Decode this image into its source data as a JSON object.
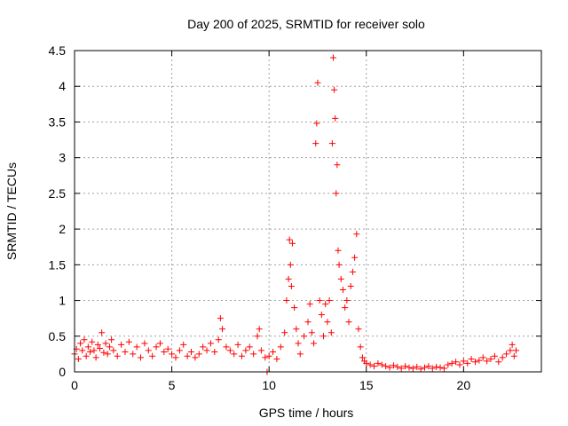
{
  "chart_data": {
    "type": "scatter",
    "title": "Day 200 of 2025, SRMTID for receiver solo",
    "xlabel": "GPS time / hours",
    "ylabel": "SRMTID / TECUs",
    "xlim": [
      0,
      24
    ],
    "ylim": [
      0,
      4.5
    ],
    "x_ticks": [
      0,
      5,
      10,
      15,
      20
    ],
    "x_tick_labels": [
      "0",
      "5",
      "10",
      "15",
      "20"
    ],
    "y_ticks": [
      0,
      0.5,
      1,
      1.5,
      2,
      2.5,
      3,
      3.5,
      4,
      4.5
    ],
    "y_tick_labels": [
      "0",
      "0.5",
      "1",
      "1.5",
      "2",
      "2.5",
      "3",
      "3.5",
      "4",
      "4.5"
    ],
    "grid": true,
    "marker": "+",
    "color": "#ff0000",
    "series": [
      {
        "name": "SRMTID",
        "points": [
          [
            0.0,
            0.25
          ],
          [
            0.1,
            0.32
          ],
          [
            0.2,
            0.18
          ],
          [
            0.3,
            0.4
          ],
          [
            0.4,
            0.3
          ],
          [
            0.5,
            0.45
          ],
          [
            0.6,
            0.22
          ],
          [
            0.7,
            0.35
          ],
          [
            0.8,
            0.28
          ],
          [
            0.9,
            0.42
          ],
          [
            1.0,
            0.3
          ],
          [
            1.1,
            0.2
          ],
          [
            1.2,
            0.38
          ],
          [
            1.3,
            0.33
          ],
          [
            1.4,
            0.55
          ],
          [
            1.5,
            0.27
          ],
          [
            1.6,
            0.4
          ],
          [
            1.7,
            0.25
          ],
          [
            1.8,
            0.35
          ],
          [
            1.9,
            0.45
          ],
          [
            2.0,
            0.3
          ],
          [
            2.2,
            0.22
          ],
          [
            2.4,
            0.38
          ],
          [
            2.6,
            0.28
          ],
          [
            2.8,
            0.42
          ],
          [
            3.0,
            0.25
          ],
          [
            3.2,
            0.35
          ],
          [
            3.4,
            0.2
          ],
          [
            3.6,
            0.4
          ],
          [
            3.8,
            0.3
          ],
          [
            4.0,
            0.22
          ],
          [
            4.2,
            0.35
          ],
          [
            4.4,
            0.4
          ],
          [
            4.6,
            0.28
          ],
          [
            4.8,
            0.32
          ],
          [
            5.0,
            0.25
          ],
          [
            5.2,
            0.2
          ],
          [
            5.4,
            0.3
          ],
          [
            5.6,
            0.38
          ],
          [
            5.8,
            0.22
          ],
          [
            6.0,
            0.28
          ],
          [
            6.2,
            0.2
          ],
          [
            6.4,
            0.25
          ],
          [
            6.6,
            0.35
          ],
          [
            6.8,
            0.3
          ],
          [
            7.0,
            0.4
          ],
          [
            7.2,
            0.28
          ],
          [
            7.4,
            0.45
          ],
          [
            7.5,
            0.75
          ],
          [
            7.6,
            0.6
          ],
          [
            7.8,
            0.35
          ],
          [
            8.0,
            0.3
          ],
          [
            8.2,
            0.25
          ],
          [
            8.4,
            0.38
          ],
          [
            8.6,
            0.22
          ],
          [
            8.8,
            0.3
          ],
          [
            9.0,
            0.35
          ],
          [
            9.2,
            0.25
          ],
          [
            9.4,
            0.5
          ],
          [
            9.5,
            0.6
          ],
          [
            9.6,
            0.3
          ],
          [
            9.8,
            0.2
          ],
          [
            9.9,
            0.0
          ],
          [
            10.0,
            0.22
          ],
          [
            10.2,
            0.28
          ],
          [
            10.4,
            0.18
          ],
          [
            10.6,
            0.35
          ],
          [
            10.8,
            0.55
          ],
          [
            10.9,
            1.0
          ],
          [
            11.0,
            1.3
          ],
          [
            11.05,
            1.85
          ],
          [
            11.1,
            1.5
          ],
          [
            11.15,
            1.2
          ],
          [
            11.2,
            1.8
          ],
          [
            11.3,
            0.9
          ],
          [
            11.4,
            0.6
          ],
          [
            11.5,
            0.4
          ],
          [
            11.6,
            0.25
          ],
          [
            11.8,
            0.5
          ],
          [
            12.0,
            0.7
          ],
          [
            12.1,
            0.95
          ],
          [
            12.2,
            0.55
          ],
          [
            12.3,
            0.4
          ],
          [
            12.4,
            3.2
          ],
          [
            12.45,
            3.48
          ],
          [
            12.5,
            4.05
          ],
          [
            12.6,
            1.0
          ],
          [
            12.7,
            0.8
          ],
          [
            12.8,
            0.5
          ],
          [
            12.9,
            0.95
          ],
          [
            13.0,
            0.7
          ],
          [
            13.1,
            1.0
          ],
          [
            13.2,
            0.55
          ],
          [
            13.25,
            3.2
          ],
          [
            13.3,
            4.4
          ],
          [
            13.35,
            3.95
          ],
          [
            13.4,
            3.55
          ],
          [
            13.45,
            2.5
          ],
          [
            13.5,
            2.9
          ],
          [
            13.55,
            1.7
          ],
          [
            13.6,
            1.5
          ],
          [
            13.7,
            1.3
          ],
          [
            13.8,
            1.15
          ],
          [
            13.9,
            0.9
          ],
          [
            14.0,
            1.0
          ],
          [
            14.1,
            0.7
          ],
          [
            14.2,
            1.2
          ],
          [
            14.3,
            1.4
          ],
          [
            14.4,
            1.6
          ],
          [
            14.5,
            1.93
          ],
          [
            14.6,
            0.6
          ],
          [
            14.7,
            0.35
          ],
          [
            14.8,
            0.2
          ],
          [
            14.9,
            0.15
          ],
          [
            15.0,
            0.12
          ],
          [
            15.2,
            0.1
          ],
          [
            15.4,
            0.08
          ],
          [
            15.6,
            0.12
          ],
          [
            15.8,
            0.1
          ],
          [
            16.0,
            0.08
          ],
          [
            16.2,
            0.06
          ],
          [
            16.4,
            0.09
          ],
          [
            16.6,
            0.07
          ],
          [
            16.8,
            0.05
          ],
          [
            17.0,
            0.08
          ],
          [
            17.2,
            0.06
          ],
          [
            17.4,
            0.05
          ],
          [
            17.6,
            0.07
          ],
          [
            17.8,
            0.04
          ],
          [
            18.0,
            0.06
          ],
          [
            18.2,
            0.08
          ],
          [
            18.4,
            0.05
          ],
          [
            18.6,
            0.07
          ],
          [
            18.8,
            0.06
          ],
          [
            19.0,
            0.05
          ],
          [
            19.2,
            0.1
          ],
          [
            19.4,
            0.12
          ],
          [
            19.6,
            0.14
          ],
          [
            19.8,
            0.1
          ],
          [
            20.0,
            0.15
          ],
          [
            20.2,
            0.12
          ],
          [
            20.4,
            0.18
          ],
          [
            20.6,
            0.14
          ],
          [
            20.8,
            0.16
          ],
          [
            21.0,
            0.2
          ],
          [
            21.2,
            0.15
          ],
          [
            21.4,
            0.18
          ],
          [
            21.6,
            0.22
          ],
          [
            21.8,
            0.14
          ],
          [
            22.0,
            0.2
          ],
          [
            22.2,
            0.25
          ],
          [
            22.4,
            0.3
          ],
          [
            22.5,
            0.38
          ],
          [
            22.6,
            0.22
          ],
          [
            22.7,
            0.3
          ]
        ]
      }
    ]
  }
}
